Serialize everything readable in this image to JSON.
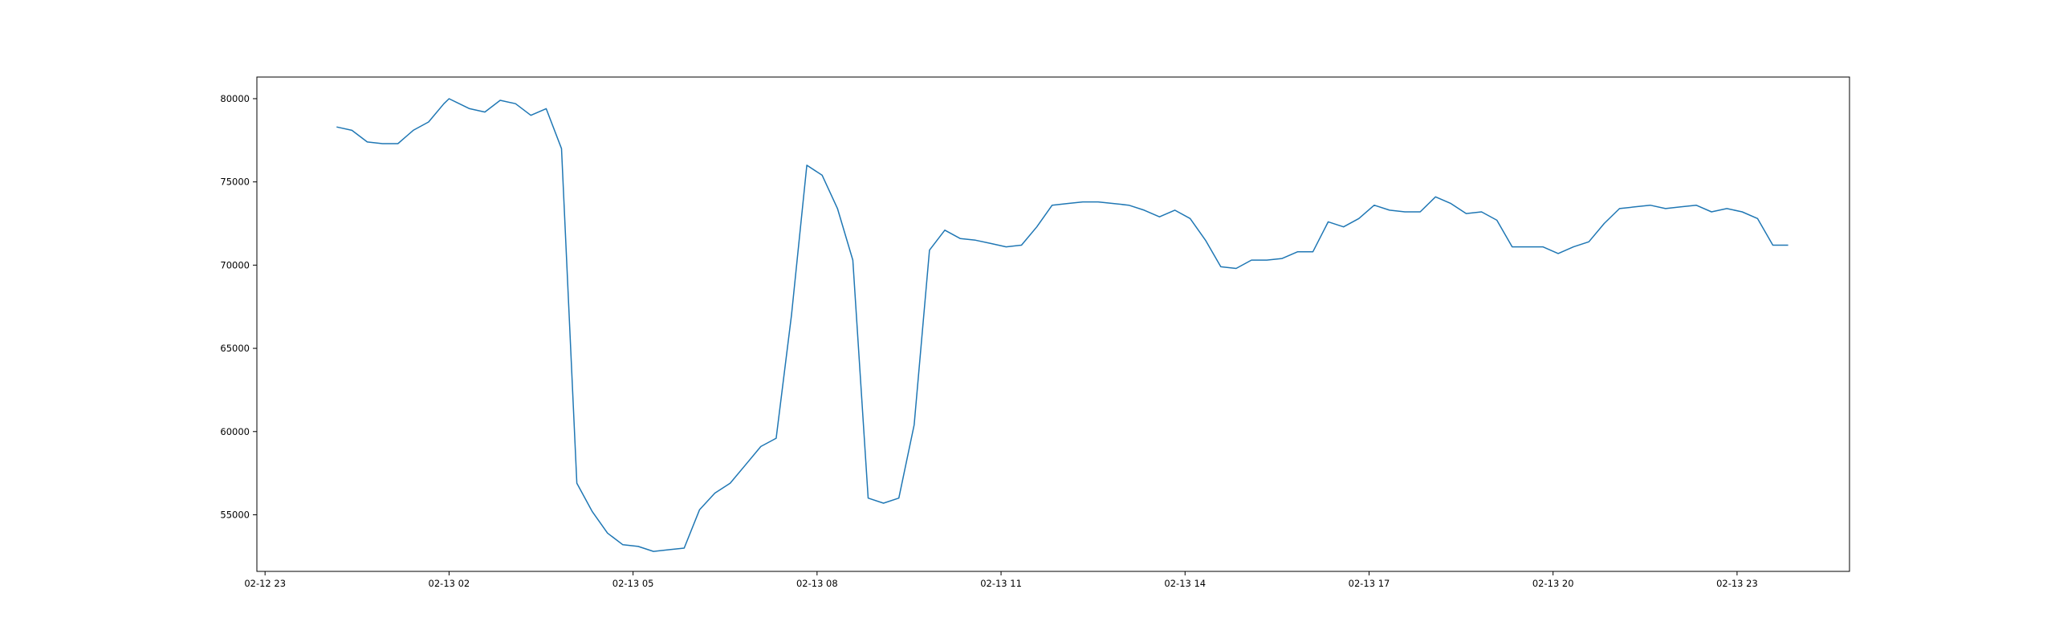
{
  "chart_data": {
    "type": "line",
    "title": "",
    "xlabel": "",
    "ylabel": "",
    "x_tick_labels": [
      "02-12 23",
      "02-13 02",
      "02-13 05",
      "02-13 08",
      "02-13 11",
      "02-13 14",
      "02-13 17",
      "02-13 20",
      "02-13 23"
    ],
    "y_tick_labels": [
      "55000",
      "60000",
      "65000",
      "70000",
      "75000",
      "80000"
    ],
    "xlim": [
      "2024-02-12 22:52",
      "2024-02-14 00:50"
    ],
    "ylim": [
      51600,
      81300
    ],
    "grid": false,
    "legend": "none",
    "series": [
      {
        "color": "#1f77b4",
        "x": [
          "2024-02-13 00:10",
          "2024-02-13 00:25",
          "2024-02-13 00:40",
          "2024-02-13 00:55",
          "2024-02-13 01:10",
          "2024-02-13 01:25",
          "2024-02-13 01:40",
          "2024-02-13 01:55",
          "2024-02-13 02:00",
          "2024-02-13 02:20",
          "2024-02-13 02:35",
          "2024-02-13 02:50",
          "2024-02-13 03:05",
          "2024-02-13 03:20",
          "2024-02-13 03:35",
          "2024-02-13 03:50",
          "2024-02-13 04:05",
          "2024-02-13 04:20",
          "2024-02-13 04:35",
          "2024-02-13 04:50",
          "2024-02-13 05:05",
          "2024-02-13 05:20",
          "2024-02-13 05:35",
          "2024-02-13 05:50",
          "2024-02-13 06:05",
          "2024-02-13 06:20",
          "2024-02-13 06:35",
          "2024-02-13 06:50",
          "2024-02-13 07:05",
          "2024-02-13 07:20",
          "2024-02-13 07:35",
          "2024-02-13 07:50",
          "2024-02-13 08:05",
          "2024-02-13 08:20",
          "2024-02-13 08:35",
          "2024-02-13 08:50",
          "2024-02-13 09:05",
          "2024-02-13 09:20",
          "2024-02-13 09:35",
          "2024-02-13 09:50",
          "2024-02-13 10:05",
          "2024-02-13 10:20",
          "2024-02-13 10:35",
          "2024-02-13 10:50",
          "2024-02-13 11:05",
          "2024-02-13 11:20",
          "2024-02-13 11:35",
          "2024-02-13 11:50",
          "2024-02-13 12:05",
          "2024-02-13 12:20",
          "2024-02-13 12:35",
          "2024-02-13 12:50",
          "2024-02-13 13:05",
          "2024-02-13 13:20",
          "2024-02-13 13:35",
          "2024-02-13 13:50",
          "2024-02-13 14:05",
          "2024-02-13 14:20",
          "2024-02-13 14:35",
          "2024-02-13 14:50",
          "2024-02-13 15:05",
          "2024-02-13 15:20",
          "2024-02-13 15:35",
          "2024-02-13 15:50",
          "2024-02-13 16:05",
          "2024-02-13 16:20",
          "2024-02-13 16:35",
          "2024-02-13 16:50",
          "2024-02-13 17:05",
          "2024-02-13 17:20",
          "2024-02-13 17:35",
          "2024-02-13 17:50",
          "2024-02-13 18:05",
          "2024-02-13 18:20",
          "2024-02-13 18:35",
          "2024-02-13 18:50",
          "2024-02-13 19:05",
          "2024-02-13 19:20",
          "2024-02-13 19:35",
          "2024-02-13 19:50",
          "2024-02-13 20:05",
          "2024-02-13 20:20",
          "2024-02-13 20:35",
          "2024-02-13 20:50",
          "2024-02-13 21:05",
          "2024-02-13 21:20",
          "2024-02-13 21:35",
          "2024-02-13 21:50",
          "2024-02-13 22:05",
          "2024-02-13 22:20",
          "2024-02-13 22:35",
          "2024-02-13 22:50",
          "2024-02-13 23:05",
          "2024-02-13 23:20",
          "2024-02-13 23:35",
          "2024-02-13 23:50"
        ],
        "values": [
          78300,
          78100,
          77400,
          77300,
          77300,
          78100,
          78600,
          79700,
          80000,
          79400,
          79200,
          79900,
          79700,
          79000,
          79400,
          77000,
          56900,
          55200,
          53900,
          53200,
          53100,
          52800,
          52900,
          53000,
          55300,
          56300,
          56900,
          58000,
          59100,
          59600,
          67000,
          76000,
          75400,
          73400,
          70300,
          56000,
          55700,
          56000,
          60400,
          70900,
          72100,
          71600,
          71500,
          71300,
          71100,
          71200,
          72300,
          73600,
          73700,
          73800,
          73800,
          73700,
          73600,
          73300,
          72900,
          73300,
          72800,
          71500,
          69900,
          69800,
          70300,
          70300,
          70400,
          70800,
          70800,
          72600,
          72300,
          72800,
          73600,
          73300,
          73200,
          73200,
          74100,
          73700,
          73100,
          73200,
          72700,
          71100,
          71100,
          71100,
          70700,
          71100,
          71400,
          72500,
          73400,
          73500,
          73600,
          73400,
          73500,
          73600,
          73200,
          73400,
          73200,
          72800,
          71200,
          71200
        ]
      }
    ]
  }
}
